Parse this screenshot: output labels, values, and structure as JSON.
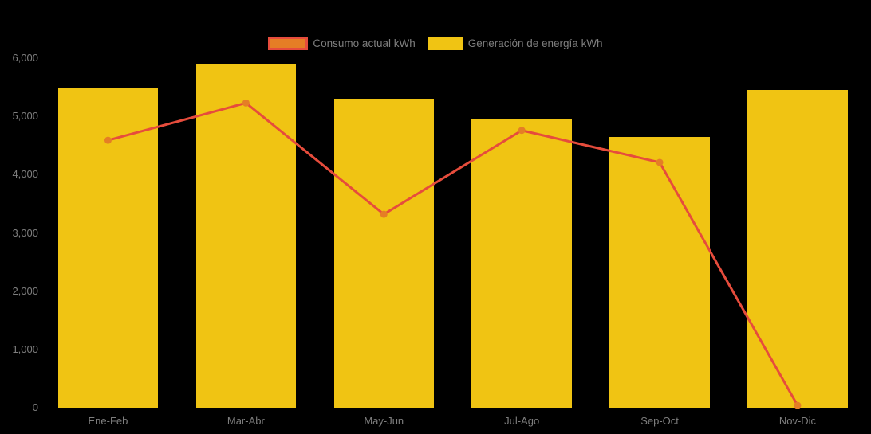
{
  "chart_data": {
    "type": "bar",
    "title": "",
    "xlabel": "",
    "ylabel": "",
    "categories": [
      "Ene-Feb",
      "Mar-Abr",
      "May-Jun",
      "Jul-Ago",
      "Sep-Oct",
      "Nov-Dic"
    ],
    "series": [
      {
        "name": "Consumo actual kWh",
        "type": "line",
        "color": "#E64C3C",
        "marker_color": "#E57E25",
        "values": [
          4590,
          5230,
          3320,
          4760,
          4210,
          40
        ]
      },
      {
        "name": "Generación de energía kWh",
        "type": "bar",
        "color": "#F0C413",
        "values": [
          5500,
          5900,
          5300,
          4950,
          4650,
          5450
        ]
      }
    ],
    "ylim": [
      0,
      6000
    ],
    "y_tick_labels": [
      "0",
      "1,000",
      "2,000",
      "3,000",
      "4,000",
      "5,000",
      "6,000"
    ],
    "legend_position": "top",
    "grid": false,
    "background_color": "#000000",
    "text_color": "#7E7E7E"
  }
}
